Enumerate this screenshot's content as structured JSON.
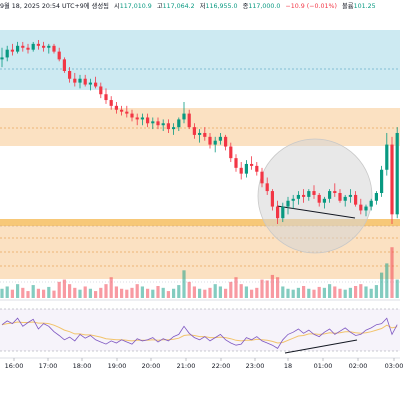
{
  "header": {
    "date_text": "9월 18, 2025 20:54 UTC+9에 생성됨",
    "open_label": "시",
    "open_value": "117,010.9",
    "high_label": "고",
    "high_value": "117,064.2",
    "low_label": "저",
    "low_value": "116,955.0",
    "close_label": "종",
    "close_value": "117,000.0",
    "change_text": "−10.9 (−0.01%)",
    "volume_label": "볼륨",
    "volume_value": "101.25"
  },
  "chart_data": {
    "type": "candlestick",
    "x_tick_labels": [
      "16:00",
      "17:00",
      "18:00",
      "19:00",
      "20:00",
      "21:00",
      "22:00",
      "23:00",
      "18",
      "01:00",
      "02:00",
      "03:00"
    ],
    "price_ohlc": [
      [
        117000,
        117060,
        116960,
        117010
      ],
      [
        117010,
        117070,
        116990,
        117050
      ],
      [
        117050,
        117080,
        117020,
        117040
      ],
      [
        117040,
        117090,
        117030,
        117070
      ],
      [
        117070,
        117090,
        117040,
        117060
      ],
      [
        117060,
        117080,
        117030,
        117050
      ],
      [
        117050,
        117090,
        117040,
        117080
      ],
      [
        117080,
        117100,
        117050,
        117070
      ],
      [
        117070,
        117090,
        117040,
        117060
      ],
      [
        117060,
        117080,
        117030,
        117070
      ],
      [
        117070,
        117080,
        117030,
        117040
      ],
      [
        117040,
        117060,
        116990,
        117000
      ],
      [
        117000,
        117010,
        116930,
        116940
      ],
      [
        116940,
        116960,
        116880,
        116900
      ],
      [
        116900,
        116930,
        116860,
        116880
      ],
      [
        116880,
        116920,
        116850,
        116900
      ],
      [
        116900,
        116920,
        116860,
        116870
      ],
      [
        116870,
        116900,
        116840,
        116880
      ],
      [
        116880,
        116910,
        116850,
        116860
      ],
      [
        116860,
        116880,
        116800,
        116820
      ],
      [
        116820,
        116850,
        116770,
        116790
      ],
      [
        116790,
        116810,
        116740,
        116760
      ],
      [
        116760,
        116780,
        116720,
        116740
      ],
      [
        116740,
        116760,
        116710,
        116730
      ],
      [
        116730,
        116760,
        116700,
        116720
      ],
      [
        116720,
        116740,
        116680,
        116700
      ],
      [
        116700,
        116720,
        116660,
        116690
      ],
      [
        116690,
        116720,
        116660,
        116700
      ],
      [
        116700,
        116720,
        116650,
        116670
      ],
      [
        116670,
        116700,
        116640,
        116680
      ],
      [
        116680,
        116700,
        116640,
        116660
      ],
      [
        116660,
        116690,
        116630,
        116670
      ],
      [
        116670,
        116690,
        116620,
        116640
      ],
      [
        116640,
        116670,
        116610,
        116650
      ],
      [
        116650,
        116700,
        116630,
        116690
      ],
      [
        116690,
        116780,
        116670,
        116720
      ],
      [
        116720,
        116740,
        116640,
        116650
      ],
      [
        116650,
        116670,
        116590,
        116610
      ],
      [
        116610,
        116640,
        116570,
        116620
      ],
      [
        116620,
        116650,
        116580,
        116600
      ],
      [
        116600,
        116620,
        116540,
        116560
      ],
      [
        116560,
        116600,
        116520,
        116580
      ],
      [
        116580,
        116620,
        116560,
        116600
      ],
      [
        116600,
        116610,
        116530,
        116550
      ],
      [
        116550,
        116570,
        116470,
        116490
      ],
      [
        116490,
        116510,
        116420,
        116440
      ],
      [
        116440,
        116470,
        116380,
        116410
      ],
      [
        116410,
        116480,
        116390,
        116460
      ],
      [
        116460,
        116500,
        116430,
        116450
      ],
      [
        116450,
        116470,
        116400,
        116420
      ],
      [
        116420,
        116440,
        116340,
        116360
      ],
      [
        116360,
        116390,
        116300,
        116320
      ],
      [
        116320,
        116330,
        116220,
        116240
      ],
      [
        116240,
        116270,
        116150,
        116180
      ],
      [
        116180,
        116260,
        116160,
        116240
      ],
      [
        116240,
        116290,
        116200,
        116270
      ],
      [
        116270,
        116300,
        116230,
        116280
      ],
      [
        116280,
        116320,
        116250,
        116300
      ],
      [
        116300,
        116330,
        116260,
        116290
      ],
      [
        116290,
        116330,
        116270,
        116320
      ],
      [
        116320,
        116350,
        116280,
        116300
      ],
      [
        116300,
        116310,
        116240,
        116260
      ],
      [
        116260,
        116290,
        116230,
        116280
      ],
      [
        116280,
        116330,
        116260,
        116320
      ],
      [
        116320,
        116360,
        116290,
        116310
      ],
      [
        116310,
        116330,
        116260,
        116270
      ],
      [
        116270,
        116300,
        116240,
        116290
      ],
      [
        116290,
        116330,
        116260,
        116300
      ],
      [
        116300,
        116320,
        116240,
        116250
      ],
      [
        116250,
        116280,
        116200,
        116220
      ],
      [
        116220,
        116250,
        116190,
        116240
      ],
      [
        116240,
        116280,
        116220,
        116270
      ],
      [
        116270,
        116320,
        116250,
        116310
      ],
      [
        116310,
        116450,
        116290,
        116430
      ],
      [
        116430,
        116620,
        116400,
        116560
      ],
      [
        116560,
        116600,
        116150,
        116200
      ],
      [
        116200,
        116650,
        116180,
        116620
      ]
    ],
    "volume": [
      20,
      25,
      18,
      30,
      22,
      15,
      28,
      20,
      18,
      24,
      16,
      35,
      40,
      30,
      22,
      18,
      25,
      20,
      15,
      22,
      30,
      45,
      25,
      20,
      18,
      22,
      30,
      25,
      20,
      18,
      26,
      22,
      15,
      20,
      28,
      60,
      35,
      25,
      20,
      18,
      22,
      30,
      25,
      20,
      35,
      45,
      30,
      25,
      18,
      22,
      40,
      38,
      50,
      45,
      25,
      20,
      18,
      22,
      26,
      20,
      18,
      24,
      22,
      30,
      25,
      20,
      18,
      22,
      26,
      30,
      25,
      20,
      28,
      55,
      75,
      110,
      40
    ],
    "volume_scale_max": 130,
    "oscillator": {
      "primary": [
        58,
        65,
        60,
        70,
        55,
        62,
        68,
        50,
        60,
        55,
        45,
        38,
        30,
        35,
        28,
        40,
        33,
        38,
        30,
        26,
        22,
        28,
        24,
        30,
        26,
        22,
        32,
        28,
        30,
        34,
        26,
        32,
        28,
        36,
        40,
        55,
        42,
        34,
        30,
        36,
        28,
        34,
        40,
        30,
        24,
        20,
        22,
        34,
        30,
        36,
        28,
        24,
        20,
        14,
        30,
        40,
        44,
        50,
        42,
        48,
        40,
        36,
        44,
        50,
        40,
        46,
        52,
        44,
        38,
        40,
        48,
        52,
        58,
        60,
        70,
        40,
        58
      ],
      "signal": [
        58,
        60,
        61,
        63,
        62,
        62,
        63,
        61,
        61,
        60,
        57,
        53,
        48,
        45,
        41,
        41,
        39,
        39,
        37,
        35,
        32,
        31,
        30,
        30,
        29,
        28,
        29,
        29,
        29,
        30,
        29,
        30,
        30,
        31,
        33,
        38,
        39,
        38,
        36,
        36,
        34,
        34,
        35,
        34,
        32,
        29,
        28,
        29,
        29,
        31,
        30,
        29,
        27,
        24,
        25,
        29,
        33,
        37,
        38,
        41,
        41,
        40,
        41,
        43,
        42,
        43,
        45,
        45,
        43,
        42,
        43,
        45,
        48,
        51,
        57,
        52,
        54
      ],
      "range": [
        0,
        100
      ],
      "upper_band": 70,
      "lower_band": 30
    },
    "colors": {
      "up": "#089981",
      "down": "#f23645",
      "cyan_zone": "#cdeaf2",
      "orange_zone": "#fbe1c2",
      "circle_fill": "#d6d6d6",
      "oscillator_line": "#7e57c2",
      "signal_line": "#f2c36b"
    }
  }
}
